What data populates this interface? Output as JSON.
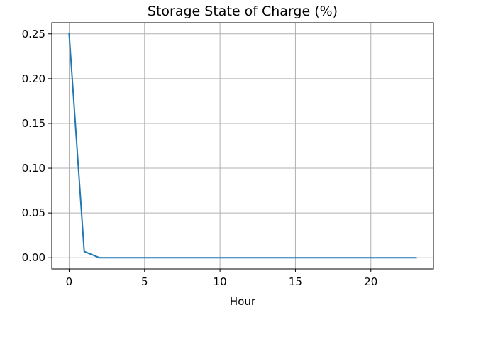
{
  "chart_data": {
    "type": "line",
    "title": "Storage State of Charge (%)",
    "xlabel": "Hour",
    "ylabel": "",
    "xlim": [
      -1.15,
      24.15
    ],
    "ylim": [
      -0.0125,
      0.2625
    ],
    "xticks": [
      0,
      5,
      10,
      15,
      20
    ],
    "xtick_labels": [
      "0",
      "5",
      "10",
      "15",
      "20"
    ],
    "yticks": [
      0.0,
      0.05,
      0.1,
      0.15,
      0.2,
      0.25
    ],
    "ytick_labels": [
      "0.00",
      "0.05",
      "0.10",
      "0.15",
      "0.20",
      "0.25"
    ],
    "grid": true,
    "series": [
      {
        "color": "#1f77b4",
        "x": [
          0,
          1,
          2,
          3,
          4,
          5,
          6,
          7,
          8,
          9,
          10,
          11,
          12,
          13,
          14,
          15,
          16,
          17,
          18,
          19,
          20,
          21,
          22,
          23
        ],
        "y": [
          0.25,
          0.007,
          0,
          0,
          0,
          0,
          0,
          0,
          0,
          0,
          0,
          0,
          0,
          0,
          0,
          0,
          0,
          0,
          0,
          0,
          0,
          0,
          0,
          0
        ]
      }
    ]
  }
}
